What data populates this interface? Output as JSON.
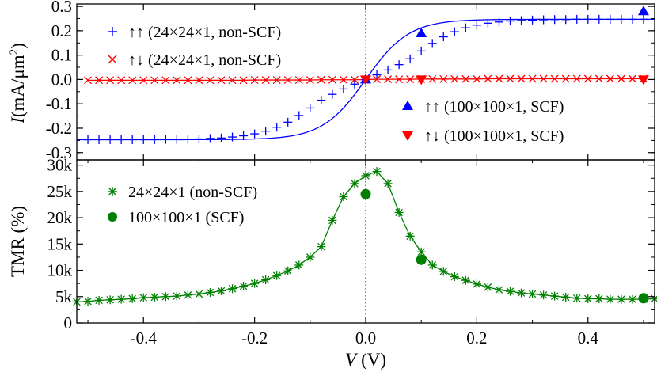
{
  "chart_data": [
    {
      "type": "line",
      "panel": "top",
      "ylabel": "I (mA/μm²)",
      "ylabel_parts": {
        "sym": "I",
        "unit": "(mA/μm",
        "exp": "2",
        "close": ")"
      },
      "xlim": [
        -0.52,
        0.52
      ],
      "ylim": [
        -0.33,
        0.31
      ],
      "yticks": [
        -0.3,
        -0.2,
        -0.1,
        0.0,
        0.1,
        0.2,
        0.3
      ],
      "ytick_labels": [
        "-0.3",
        "-0.2",
        "-0.1",
        "0.0",
        "0.1",
        "0.2",
        "0.3"
      ],
      "grid": false,
      "vline_x": 0.0,
      "series": [
        {
          "name": "↑↑ (24×24×1, non-SCF)",
          "marker": "plus",
          "color": "#0000ff",
          "curve": {
            "form": "tanh",
            "amplitude": 0.247,
            "scale": 0.078
          },
          "x": [
            -0.5,
            -0.48,
            -0.46,
            -0.44,
            -0.42,
            -0.4,
            -0.38,
            -0.36,
            -0.34,
            -0.32,
            -0.3,
            -0.28,
            -0.26,
            -0.24,
            -0.22,
            -0.2,
            -0.18,
            -0.16,
            -0.14,
            -0.12,
            -0.1,
            -0.08,
            -0.06,
            -0.04,
            -0.02,
            0.0,
            0.02,
            0.04,
            0.06,
            0.08,
            0.1,
            0.12,
            0.14,
            0.16,
            0.18,
            0.2,
            0.22,
            0.24,
            0.26,
            0.28,
            0.3,
            0.32,
            0.34,
            0.36,
            0.38,
            0.4,
            0.42,
            0.44,
            0.46,
            0.48,
            0.5
          ],
          "y": [
            -0.247,
            -0.247,
            -0.247,
            -0.247,
            -0.247,
            -0.247,
            -0.247,
            -0.246,
            -0.246,
            -0.245,
            -0.244,
            -0.242,
            -0.24,
            -0.236,
            -0.231,
            -0.223,
            -0.212,
            -0.196,
            -0.175,
            -0.148,
            -0.117,
            -0.085,
            -0.061,
            -0.039,
            -0.019,
            0.0,
            0.019,
            0.039,
            0.061,
            0.085,
            0.117,
            0.148,
            0.175,
            0.196,
            0.212,
            0.223,
            0.231,
            0.236,
            0.24,
            0.242,
            0.244,
            0.245,
            0.246,
            0.246,
            0.247,
            0.247,
            0.247,
            0.247,
            0.247,
            0.247,
            0.247
          ]
        },
        {
          "name": "↑↓ (24×24×1, non-SCF)",
          "marker": "x",
          "color": "#ff0000",
          "x": [
            -0.5,
            -0.48,
            -0.46,
            -0.44,
            -0.42,
            -0.4,
            -0.38,
            -0.36,
            -0.34,
            -0.32,
            -0.3,
            -0.28,
            -0.26,
            -0.24,
            -0.22,
            -0.2,
            -0.18,
            -0.16,
            -0.14,
            -0.12,
            -0.1,
            -0.08,
            -0.06,
            -0.04,
            -0.02,
            0.0,
            0.02,
            0.04,
            0.06,
            0.08,
            0.1,
            0.12,
            0.14,
            0.16,
            0.18,
            0.2,
            0.22,
            0.24,
            0.26,
            0.28,
            0.3,
            0.32,
            0.34,
            0.36,
            0.38,
            0.4,
            0.42,
            0.44,
            0.46,
            0.48,
            0.5
          ],
          "y": [
            -0.003,
            -0.003,
            -0.003,
            -0.003,
            -0.003,
            -0.003,
            -0.003,
            -0.003,
            -0.003,
            -0.003,
            -0.003,
            -0.003,
            -0.003,
            -0.003,
            -0.003,
            -0.002,
            -0.002,
            -0.002,
            -0.002,
            -0.002,
            -0.002,
            -0.001,
            -0.001,
            -0.001,
            -0.001,
            0.0,
            0.001,
            0.001,
            0.001,
            0.001,
            0.002,
            0.002,
            0.002,
            0.002,
            0.002,
            0.002,
            0.003,
            0.003,
            0.003,
            0.003,
            0.003,
            0.003,
            0.003,
            0.003,
            0.003,
            0.003,
            0.003,
            0.003,
            0.003,
            0.003,
            0.003
          ]
        },
        {
          "name": "↑↑ (100×100×1, SCF)",
          "marker": "triangle-up",
          "color": "#0000ff",
          "x": [
            0.0,
            0.1,
            0.5
          ],
          "y": [
            0.0,
            0.19,
            0.28
          ]
        },
        {
          "name": "↑↓ (100×100×1, SCF)",
          "marker": "triangle-down",
          "color": "#ff0000",
          "x": [
            0.0,
            0.1,
            0.5
          ],
          "y": [
            0.0,
            0.0,
            0.0
          ]
        }
      ]
    },
    {
      "type": "line",
      "panel": "bottom",
      "xlabel": "V (V)",
      "xlabel_parts": {
        "sym": "V",
        "unit": "(V)"
      },
      "ylabel": "TMR (%)",
      "xlim": [
        -0.52,
        0.52
      ],
      "ylim": [
        0,
        31000
      ],
      "xticks": [
        -0.4,
        -0.2,
        0.0,
        0.2,
        0.4
      ],
      "xtick_labels": [
        "-0.4",
        "-0.2",
        "0.0",
        "0.2",
        "0.4"
      ],
      "yticks": [
        0,
        5000,
        10000,
        15000,
        20000,
        25000,
        30000
      ],
      "ytick_labels": [
        "0",
        "5k",
        "10k",
        "15k",
        "20k",
        "25k",
        "30k"
      ],
      "grid": false,
      "vline_x": 0.0,
      "series": [
        {
          "name": "24×24×1 (non-SCF)",
          "marker": "asterisk",
          "color": "#008000",
          "x": [
            -0.52,
            -0.5,
            -0.48,
            -0.46,
            -0.44,
            -0.42,
            -0.4,
            -0.38,
            -0.36,
            -0.34,
            -0.32,
            -0.3,
            -0.28,
            -0.26,
            -0.24,
            -0.22,
            -0.2,
            -0.18,
            -0.16,
            -0.14,
            -0.12,
            -0.1,
            -0.08,
            -0.06,
            -0.04,
            -0.02,
            0.0,
            0.02,
            0.04,
            0.06,
            0.08,
            0.1,
            0.12,
            0.14,
            0.16,
            0.18,
            0.2,
            0.22,
            0.24,
            0.26,
            0.28,
            0.3,
            0.32,
            0.34,
            0.36,
            0.38,
            0.4,
            0.42,
            0.44,
            0.46,
            0.48,
            0.5,
            0.52
          ],
          "y": [
            4000,
            4100,
            4300,
            4400,
            4500,
            4600,
            4800,
            4900,
            5000,
            5100,
            5300,
            5500,
            5800,
            6100,
            6500,
            7000,
            7500,
            8200,
            9000,
            9900,
            11000,
            12500,
            14500,
            19500,
            24000,
            26500,
            28000,
            28800,
            26500,
            21000,
            16500,
            13500,
            11000,
            9800,
            8800,
            8100,
            7400,
            6800,
            6300,
            6000,
            5700,
            5500,
            5300,
            5100,
            4900,
            4700,
            4600,
            4600,
            4500,
            4500,
            4500,
            4500,
            4600
          ]
        },
        {
          "name": "100×100×1 (SCF)",
          "marker": "circle",
          "color": "#008000",
          "x": [
            0.0,
            0.1,
            0.5
          ],
          "y": [
            24500,
            12000,
            4700
          ]
        }
      ]
    }
  ],
  "legend": {
    "top_left": [
      "↑↑ (24×24×1, non-SCF)",
      "↑↓ (24×24×1, non-SCF)"
    ],
    "top_right": [
      "↑↑ (100×100×1, SCF)",
      "↑↓ (100×100×1, SCF)"
    ],
    "bottom_left": [
      "24×24×1 (non-SCF)",
      "100×100×1 (SCF)"
    ]
  }
}
